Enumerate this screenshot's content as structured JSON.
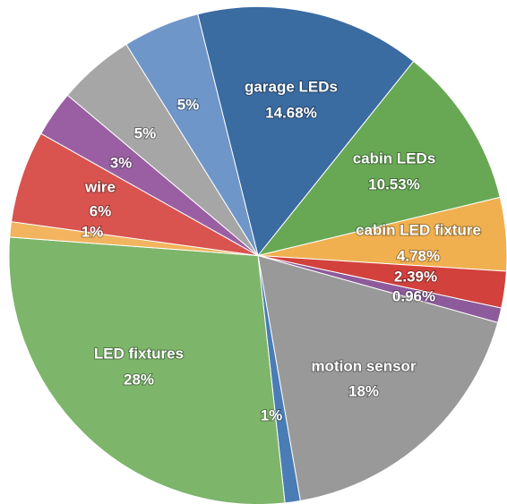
{
  "chart_data": {
    "type": "pie",
    "categories": [
      "garage LEDs",
      "cabin LEDs",
      "cabin LED fixture",
      null,
      null,
      "motion sensor",
      null,
      "LED fixtures",
      null,
      "wire",
      null,
      null,
      null
    ],
    "values": [
      14.68,
      10.53,
      4.78,
      2.39,
      0.96,
      18,
      1,
      28,
      1,
      6,
      3,
      5,
      5
    ],
    "value_labels": [
      "14.68%",
      "10.53%",
      "4.78%",
      "2.39%",
      "0.96%",
      "18%",
      "1%",
      "28%",
      "1%",
      "6%",
      "3%",
      "5%",
      "5%"
    ],
    "colors": [
      "#3a6ba1",
      "#68a855",
      "#f0b04f",
      "#d2413c",
      "#8d5b9b",
      "#999999",
      "#4a7cb5",
      "#7db56a",
      "#f2b45e",
      "#d9534f",
      "#9a5fa2",
      "#a6a6a6",
      "#6f96c8"
    ]
  }
}
